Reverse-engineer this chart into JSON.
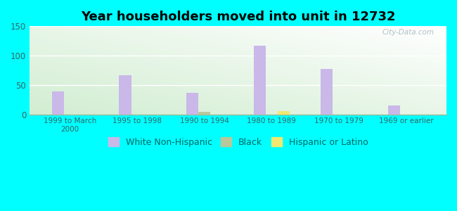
{
  "title": "Year householders moved into unit in 12732",
  "categories": [
    "1999 to March\n2000",
    "1995 to 1998",
    "1990 to 1994",
    "1980 to 1989",
    "1970 to 1979",
    "1969 or earlier"
  ],
  "white_non_hispanic": [
    40,
    67,
    37,
    117,
    78,
    16
  ],
  "black": [
    0,
    0,
    5,
    0,
    0,
    0
  ],
  "hispanic_or_latino": [
    0,
    0,
    0,
    6,
    0,
    0
  ],
  "white_color": "#c9b8e8",
  "black_color": "#b8c89a",
  "hispanic_color": "#f0e870",
  "bg_outer": "#00FFFF",
  "ylim": [
    0,
    150
  ],
  "yticks": [
    0,
    50,
    100,
    150
  ],
  "bar_width": 0.18,
  "watermark": "City-Data.com"
}
